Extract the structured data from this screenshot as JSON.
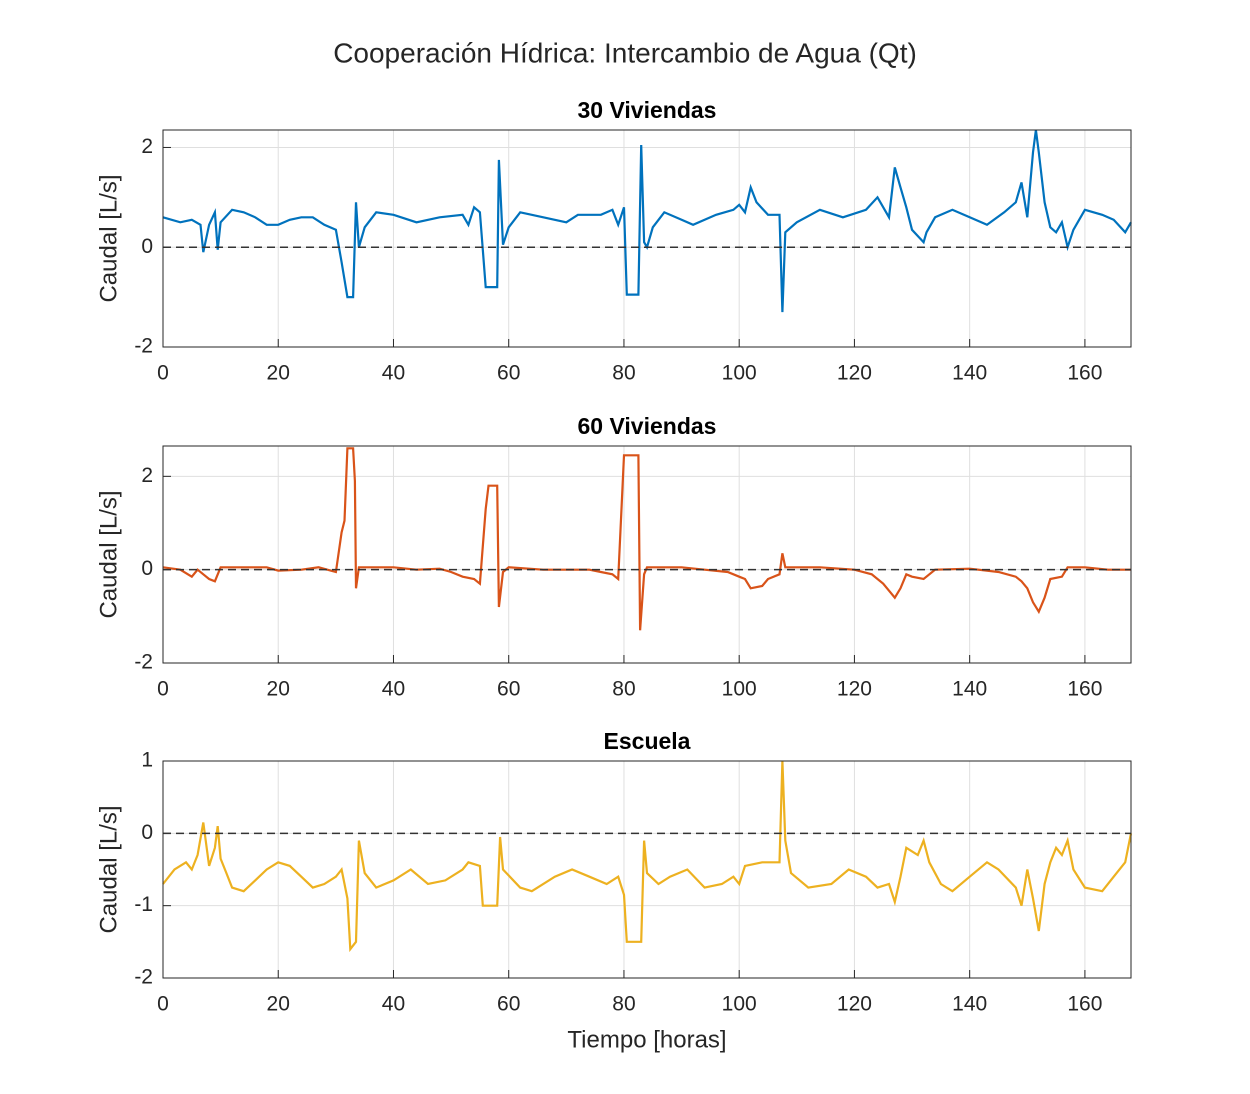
{
  "title": "Cooperación Hídrica: Intercambio de Agua (Qt)",
  "chart_data": [
    {
      "type": "line",
      "title": "30 Viviendas",
      "ylabel": "Caudal [L/s]",
      "xlim": [
        0,
        168
      ],
      "xticks": [
        0,
        20,
        40,
        60,
        80,
        100,
        120,
        140,
        160
      ],
      "ylim": [
        -2,
        2.35
      ],
      "yticks": [
        -2,
        0,
        2
      ],
      "grid": true,
      "reference_line": 0,
      "x": [
        0,
        3,
        5,
        6.5,
        7,
        8,
        9,
        9.5,
        10,
        12,
        14,
        16,
        18,
        20,
        22,
        24,
        26,
        28,
        30,
        31,
        32,
        33,
        33.5,
        34,
        35,
        37,
        40,
        44,
        48,
        52,
        53,
        54,
        55,
        56,
        58,
        58.3,
        59,
        60,
        62,
        66,
        70,
        72,
        76,
        78,
        79,
        80,
        80.5,
        82.5,
        83,
        83.5,
        84,
        85,
        87,
        90,
        92,
        96,
        99,
        100,
        101,
        102,
        103,
        105,
        107,
        107.5,
        108,
        110,
        114,
        118,
        122,
        124,
        126,
        127,
        128,
        129,
        130,
        132,
        132.5,
        134,
        137,
        140,
        143,
        146,
        148,
        149,
        150,
        151,
        151.5,
        152,
        153,
        154,
        155,
        156,
        157,
        158,
        160,
        163,
        165,
        167,
        168
      ],
      "series": [
        {
          "name": "30 Viviendas",
          "color": "#0072BD",
          "values": [
            0.6,
            0.5,
            0.55,
            0.45,
            -0.1,
            0.45,
            0.7,
            -0.05,
            0.5,
            0.75,
            0.7,
            0.6,
            0.45,
            0.45,
            0.55,
            0.6,
            0.6,
            0.45,
            0.35,
            -0.3,
            -1.0,
            -1.0,
            0.9,
            0.0,
            0.4,
            0.7,
            0.65,
            0.5,
            0.6,
            0.65,
            0.45,
            0.8,
            0.7,
            -0.8,
            -0.8,
            1.75,
            0.05,
            0.4,
            0.7,
            0.6,
            0.5,
            0.65,
            0.65,
            0.75,
            0.45,
            0.8,
            -0.95,
            -0.95,
            2.05,
            0.1,
            0.0,
            0.4,
            0.7,
            0.55,
            0.45,
            0.65,
            0.75,
            0.85,
            0.7,
            1.2,
            0.9,
            0.65,
            0.65,
            -1.3,
            0.3,
            0.5,
            0.75,
            0.6,
            0.75,
            1.0,
            0.6,
            1.6,
            1.2,
            0.8,
            0.35,
            0.1,
            0.3,
            0.6,
            0.75,
            0.6,
            0.45,
            0.7,
            0.9,
            1.3,
            0.6,
            1.9,
            2.35,
            1.9,
            0.9,
            0.4,
            0.3,
            0.5,
            0.0,
            0.35,
            0.75,
            0.65,
            0.55,
            0.3,
            0.5
          ]
        }
      ]
    },
    {
      "type": "line",
      "title": "60 Viviendas",
      "ylabel": "Caudal [L/s]",
      "xlim": [
        0,
        168
      ],
      "xticks": [
        0,
        20,
        40,
        60,
        80,
        100,
        120,
        140,
        160
      ],
      "ylim": [
        -2,
        2.65
      ],
      "yticks": [
        -2,
        0,
        2
      ],
      "grid": true,
      "reference_line": 0,
      "x": [
        0,
        3,
        5,
        6,
        7,
        8,
        9,
        10,
        14,
        18,
        20,
        24,
        27,
        30,
        31,
        31.5,
        32,
        33,
        33.3,
        33.5,
        34,
        37,
        40,
        44,
        48,
        50,
        52,
        54,
        55,
        56,
        56.5,
        58,
        58.3,
        59,
        60,
        66,
        70,
        74,
        76,
        78,
        79,
        80,
        82.5,
        82.8,
        83.5,
        84,
        90,
        94,
        98,
        100,
        101,
        102,
        104,
        105,
        107,
        107.5,
        108,
        114,
        120,
        123,
        125,
        126,
        127,
        128,
        129,
        130,
        132,
        134,
        140,
        145,
        148,
        149,
        150,
        151,
        152,
        153,
        154,
        156,
        157,
        160,
        164,
        168
      ],
      "series": [
        {
          "name": "60 Viviendas",
          "color": "#D95319",
          "values": [
            0.05,
            0.0,
            -0.15,
            0.0,
            -0.1,
            -0.2,
            -0.25,
            0.05,
            0.05,
            0.05,
            -0.02,
            0.0,
            0.05,
            -0.05,
            0.8,
            1.05,
            2.6,
            2.6,
            1.9,
            -0.4,
            0.05,
            0.05,
            0.05,
            0.0,
            0.02,
            -0.05,
            -0.15,
            -0.2,
            -0.3,
            1.3,
            1.8,
            1.8,
            -0.8,
            -0.05,
            0.05,
            0.0,
            0.0,
            0.0,
            -0.05,
            -0.1,
            -0.2,
            2.45,
            2.45,
            -1.3,
            -0.1,
            0.05,
            0.05,
            0.0,
            -0.05,
            -0.15,
            -0.2,
            -0.4,
            -0.35,
            -0.2,
            -0.1,
            0.35,
            0.05,
            0.05,
            0.0,
            -0.1,
            -0.3,
            -0.45,
            -0.6,
            -0.4,
            -0.1,
            -0.15,
            -0.2,
            0.0,
            0.02,
            -0.05,
            -0.15,
            -0.25,
            -0.4,
            -0.7,
            -0.9,
            -0.6,
            -0.2,
            -0.15,
            0.05,
            0.05,
            0.0,
            0.0
          ]
        }
      ]
    },
    {
      "type": "line",
      "title": "Escuela",
      "ylabel": "Caudal [L/s]",
      "xlabel": "Tiempo [horas]",
      "xlim": [
        0,
        168
      ],
      "xticks": [
        0,
        20,
        40,
        60,
        80,
        100,
        120,
        140,
        160
      ],
      "ylim": [
        -2,
        1
      ],
      "yticks": [
        -2,
        -1,
        0,
        1
      ],
      "grid": true,
      "reference_line": 0,
      "x": [
        0,
        2,
        4,
        5,
        6,
        7,
        8,
        9,
        9.5,
        10,
        11,
        12,
        14,
        16,
        18,
        20,
        22,
        24,
        26,
        28,
        30,
        31,
        32,
        32.5,
        33.5,
        34,
        35,
        37,
        40,
        43,
        46,
        49,
        52,
        53,
        55,
        55.5,
        58,
        58.5,
        59,
        62,
        64,
        68,
        71,
        74,
        77,
        79,
        80,
        80.5,
        83,
        83.5,
        84,
        86,
        88,
        91,
        94,
        97,
        99,
        100,
        101,
        104,
        107,
        107.5,
        108,
        109,
        112,
        116,
        119,
        122,
        124,
        126,
        127,
        128,
        129,
        131,
        132,
        133,
        135,
        137,
        140,
        143,
        145,
        148,
        149,
        150,
        151,
        152,
        153,
        154,
        155,
        156,
        157,
        158,
        160,
        163,
        165,
        167,
        168
      ],
      "series": [
        {
          "name": "Escuela",
          "color": "#EDB120",
          "values": [
            -0.7,
            -0.5,
            -0.4,
            -0.5,
            -0.3,
            0.15,
            -0.45,
            -0.2,
            0.1,
            -0.35,
            -0.55,
            -0.75,
            -0.8,
            -0.65,
            -0.5,
            -0.4,
            -0.45,
            -0.6,
            -0.75,
            -0.7,
            -0.6,
            -0.5,
            -0.9,
            -1.6,
            -1.5,
            -0.1,
            -0.55,
            -0.75,
            -0.65,
            -0.5,
            -0.7,
            -0.65,
            -0.5,
            -0.4,
            -0.45,
            -1.0,
            -1.0,
            -0.05,
            -0.5,
            -0.75,
            -0.8,
            -0.6,
            -0.5,
            -0.6,
            -0.7,
            -0.6,
            -0.85,
            -1.5,
            -1.5,
            -0.1,
            -0.55,
            -0.7,
            -0.6,
            -0.5,
            -0.75,
            -0.7,
            -0.6,
            -0.7,
            -0.45,
            -0.4,
            -0.4,
            1.0,
            -0.1,
            -0.55,
            -0.75,
            -0.7,
            -0.5,
            -0.6,
            -0.75,
            -0.7,
            -0.95,
            -0.6,
            -0.2,
            -0.3,
            -0.1,
            -0.4,
            -0.7,
            -0.8,
            -0.6,
            -0.4,
            -0.5,
            -0.75,
            -1.0,
            -0.5,
            -0.9,
            -1.35,
            -0.7,
            -0.4,
            -0.2,
            -0.3,
            -0.1,
            -0.5,
            -0.75,
            -0.8,
            -0.6,
            -0.4,
            0.0
          ]
        }
      ]
    }
  ]
}
